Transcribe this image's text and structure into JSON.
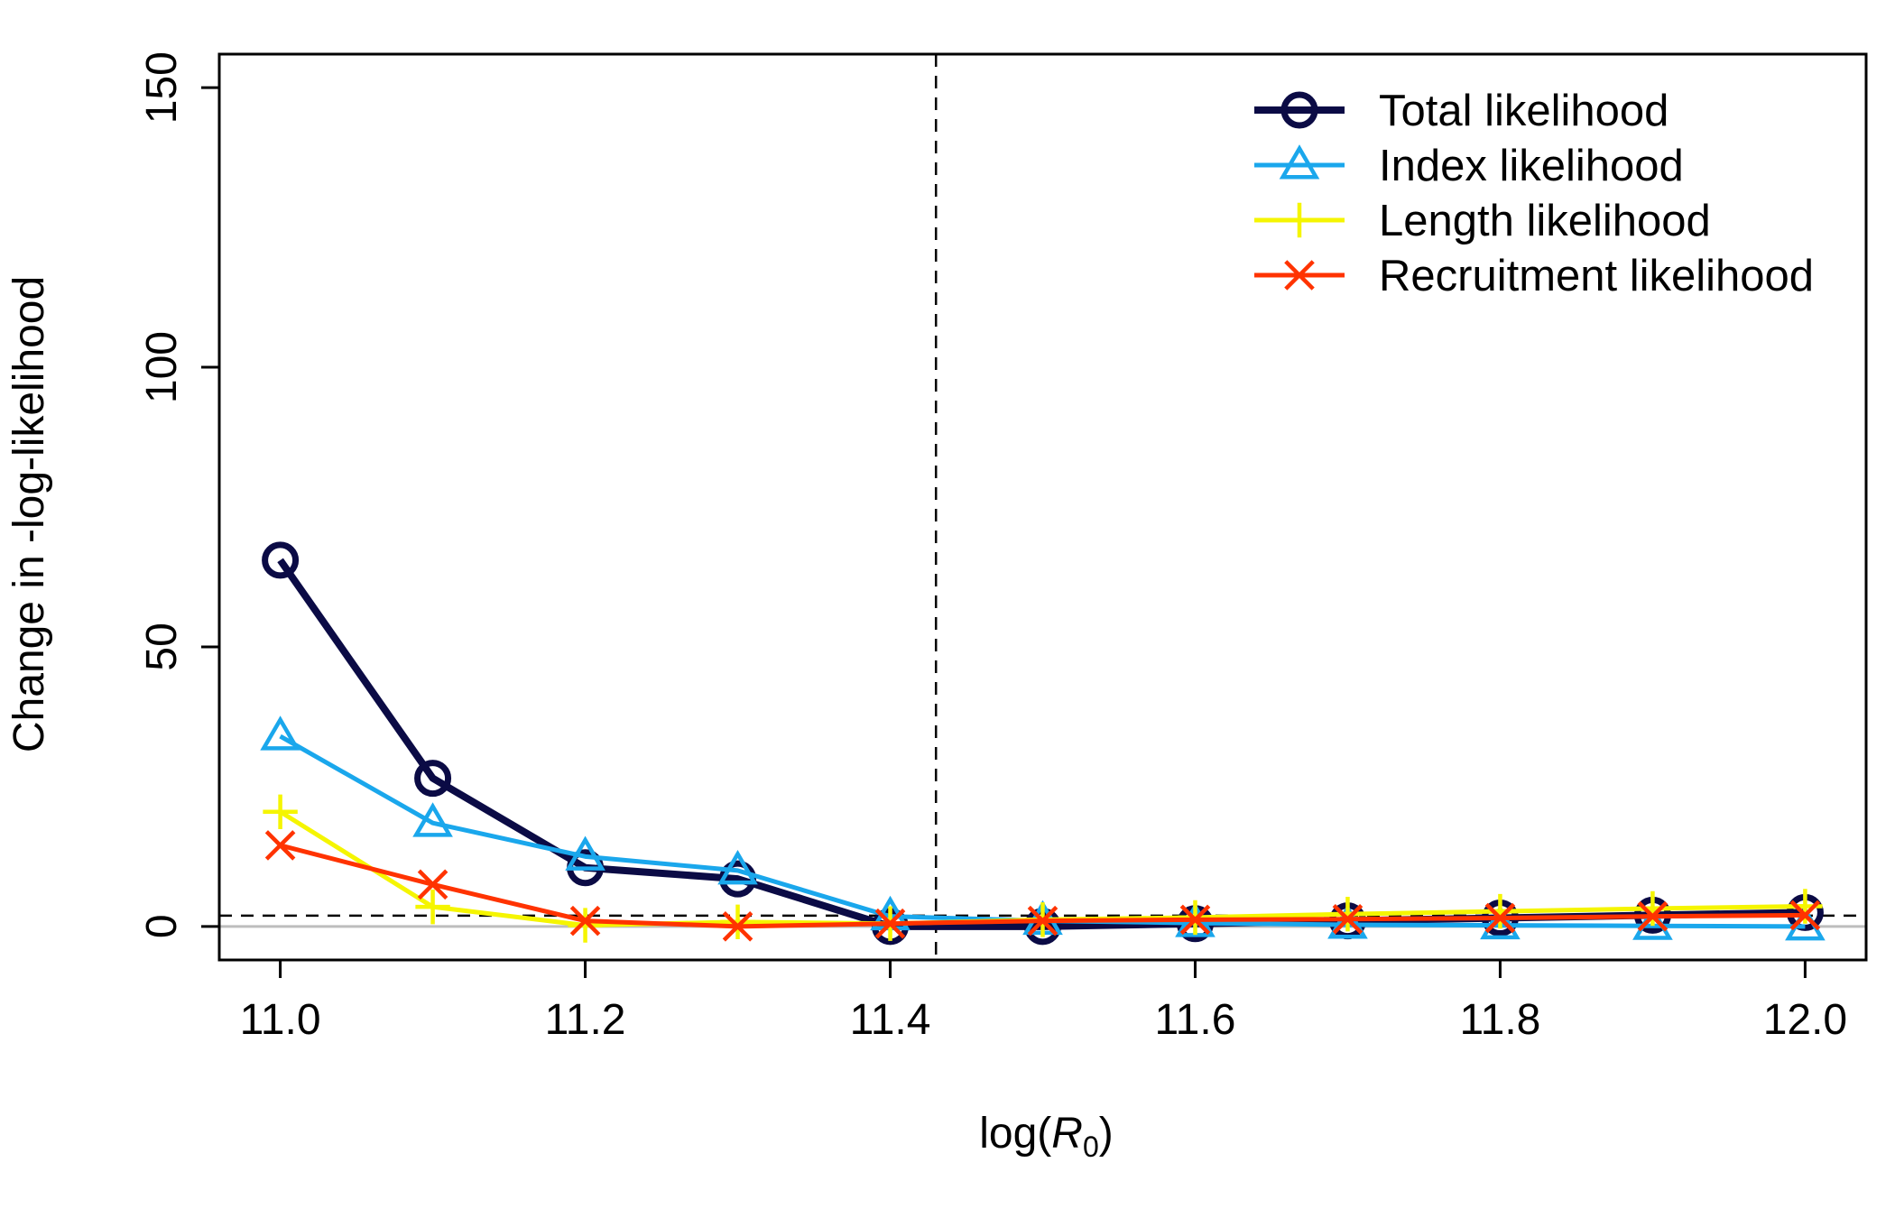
{
  "chart_data": {
    "type": "line",
    "title": "",
    "xlabel": {
      "prefix": "log(",
      "symbol": "R",
      "subscript": "0",
      "suffix": ")"
    },
    "ylabel": "Change in -log-likelihood",
    "xlim": [
      10.96,
      12.04
    ],
    "ylim": [
      -6,
      156
    ],
    "xticks": [
      11.0,
      11.2,
      11.4,
      11.6,
      11.8,
      12.0
    ],
    "xtick_labels": [
      "11.0",
      "11.2",
      "11.4",
      "11.6",
      "11.8",
      "12.0"
    ],
    "yticks": [
      0,
      50,
      100,
      150
    ],
    "ytick_labels": [
      "0",
      "50",
      "100",
      "150"
    ],
    "x": [
      11.0,
      11.1,
      11.2,
      11.3,
      11.4,
      11.5,
      11.6,
      11.7,
      11.8,
      11.9,
      12.0
    ],
    "reference_lines": {
      "vertical_dashed_x": 11.43,
      "horizontal_dashed_y": 1.92,
      "horizontal_gray_y": 0
    },
    "legend_position": "top-right",
    "grid": false,
    "series": [
      {
        "name": "Total likelihood",
        "marker": "circle",
        "color": "#0b0b45",
        "values": [
          65.5,
          26.5,
          10.5,
          8.5,
          0.0,
          0.0,
          0.5,
          1.0,
          1.5,
          2.0,
          2.5
        ]
      },
      {
        "name": "Index likelihood",
        "marker": "triangle",
        "color": "#1aa7ec",
        "values": [
          34.0,
          18.5,
          12.5,
          10.0,
          1.8,
          1.0,
          0.6,
          0.3,
          0.2,
          0.1,
          0.0
        ]
      },
      {
        "name": "Length likelihood",
        "marker": "plus",
        "color": "#f5f500",
        "values": [
          20.5,
          3.5,
          0.2,
          0.8,
          0.5,
          1.2,
          1.6,
          2.2,
          2.7,
          3.2,
          3.6
        ]
      },
      {
        "name": "Recruitment likelihood",
        "marker": "cross",
        "color": "#ff3300",
        "values": [
          14.5,
          7.5,
          1.0,
          0.0,
          0.5,
          1.0,
          1.2,
          1.3,
          1.5,
          1.8,
          2.0
        ]
      }
    ]
  }
}
